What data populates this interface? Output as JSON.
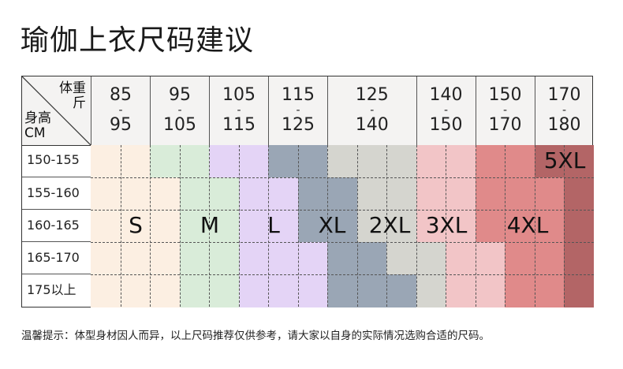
{
  "title": "瑜伽上衣尺码建议",
  "corner": {
    "weight_label": "体重",
    "weight_unit": "斤",
    "height_label": "身高",
    "height_unit": "CM"
  },
  "weight_columns": [
    {
      "from": "85",
      "to": "95",
      "span": 2
    },
    {
      "from": "95",
      "to": "105",
      "span": 2
    },
    {
      "from": "105",
      "to": "115",
      "span": 2
    },
    {
      "from": "115",
      "to": "125",
      "span": 2
    },
    {
      "from": "125",
      "to": "140",
      "span": 3
    },
    {
      "from": "140",
      "to": "150",
      "span": 2
    },
    {
      "from": "150",
      "to": "170",
      "span": 2
    },
    {
      "from": "170",
      "to": "180",
      "span": 2
    }
  ],
  "height_rows": [
    "150-155",
    "155-160",
    "160-165",
    "165-170",
    "175以上"
  ],
  "size_colors": {
    "S": "#fcefe2",
    "M": "#d9ecd9",
    "L": "#e4d4f6",
    "XL": "#9aa6b5",
    "2XL": "#d5d5cf",
    "3XL": "#f2c5c7",
    "4XL": "#e08a8a",
    "5XL": "#b36566"
  },
  "grid": [
    [
      "S",
      "S",
      "M",
      "M",
      "L",
      "L",
      "XL",
      "XL",
      "2XL",
      "2XL",
      "2XL",
      "3XL",
      "3XL",
      "4XL",
      "4XL",
      "5XL",
      "5XL"
    ],
    [
      "S",
      "S",
      "S",
      "M",
      "M",
      "L",
      "L",
      "XL",
      "XL",
      "2XL",
      "2XL",
      "3XL",
      "3XL",
      "4XL",
      "4XL",
      "4XL",
      "5XL"
    ],
    [
      "S",
      "S",
      "S",
      "M",
      "M",
      "L",
      "L",
      "XL",
      "XL",
      "2XL",
      "2XL",
      "3XL",
      "3XL",
      "4XL",
      "4XL",
      "4XL",
      "5XL"
    ],
    [
      "S",
      "S",
      "S",
      "M",
      "M",
      "L",
      "L",
      "L",
      "XL",
      "XL",
      "2XL",
      "2XL",
      "3XL",
      "3XL",
      "4XL",
      "4XL",
      "5XL"
    ],
    [
      "S",
      "S",
      "S",
      "M",
      "M",
      "L",
      "L",
      "L",
      "XL",
      "XL",
      "XL",
      "2XL",
      "3XL",
      "3XL",
      "4XL",
      "4XL",
      "5XL"
    ]
  ],
  "size_labels": [
    "S",
    "M",
    "L",
    "XL",
    "2XL",
    "3XL",
    "4XL",
    "5XL"
  ],
  "note": "温馨提示：体型身材因人而异，以上尺码推荐仅供参考，请大家以自身的实际情况选购合适的尺码。"
}
